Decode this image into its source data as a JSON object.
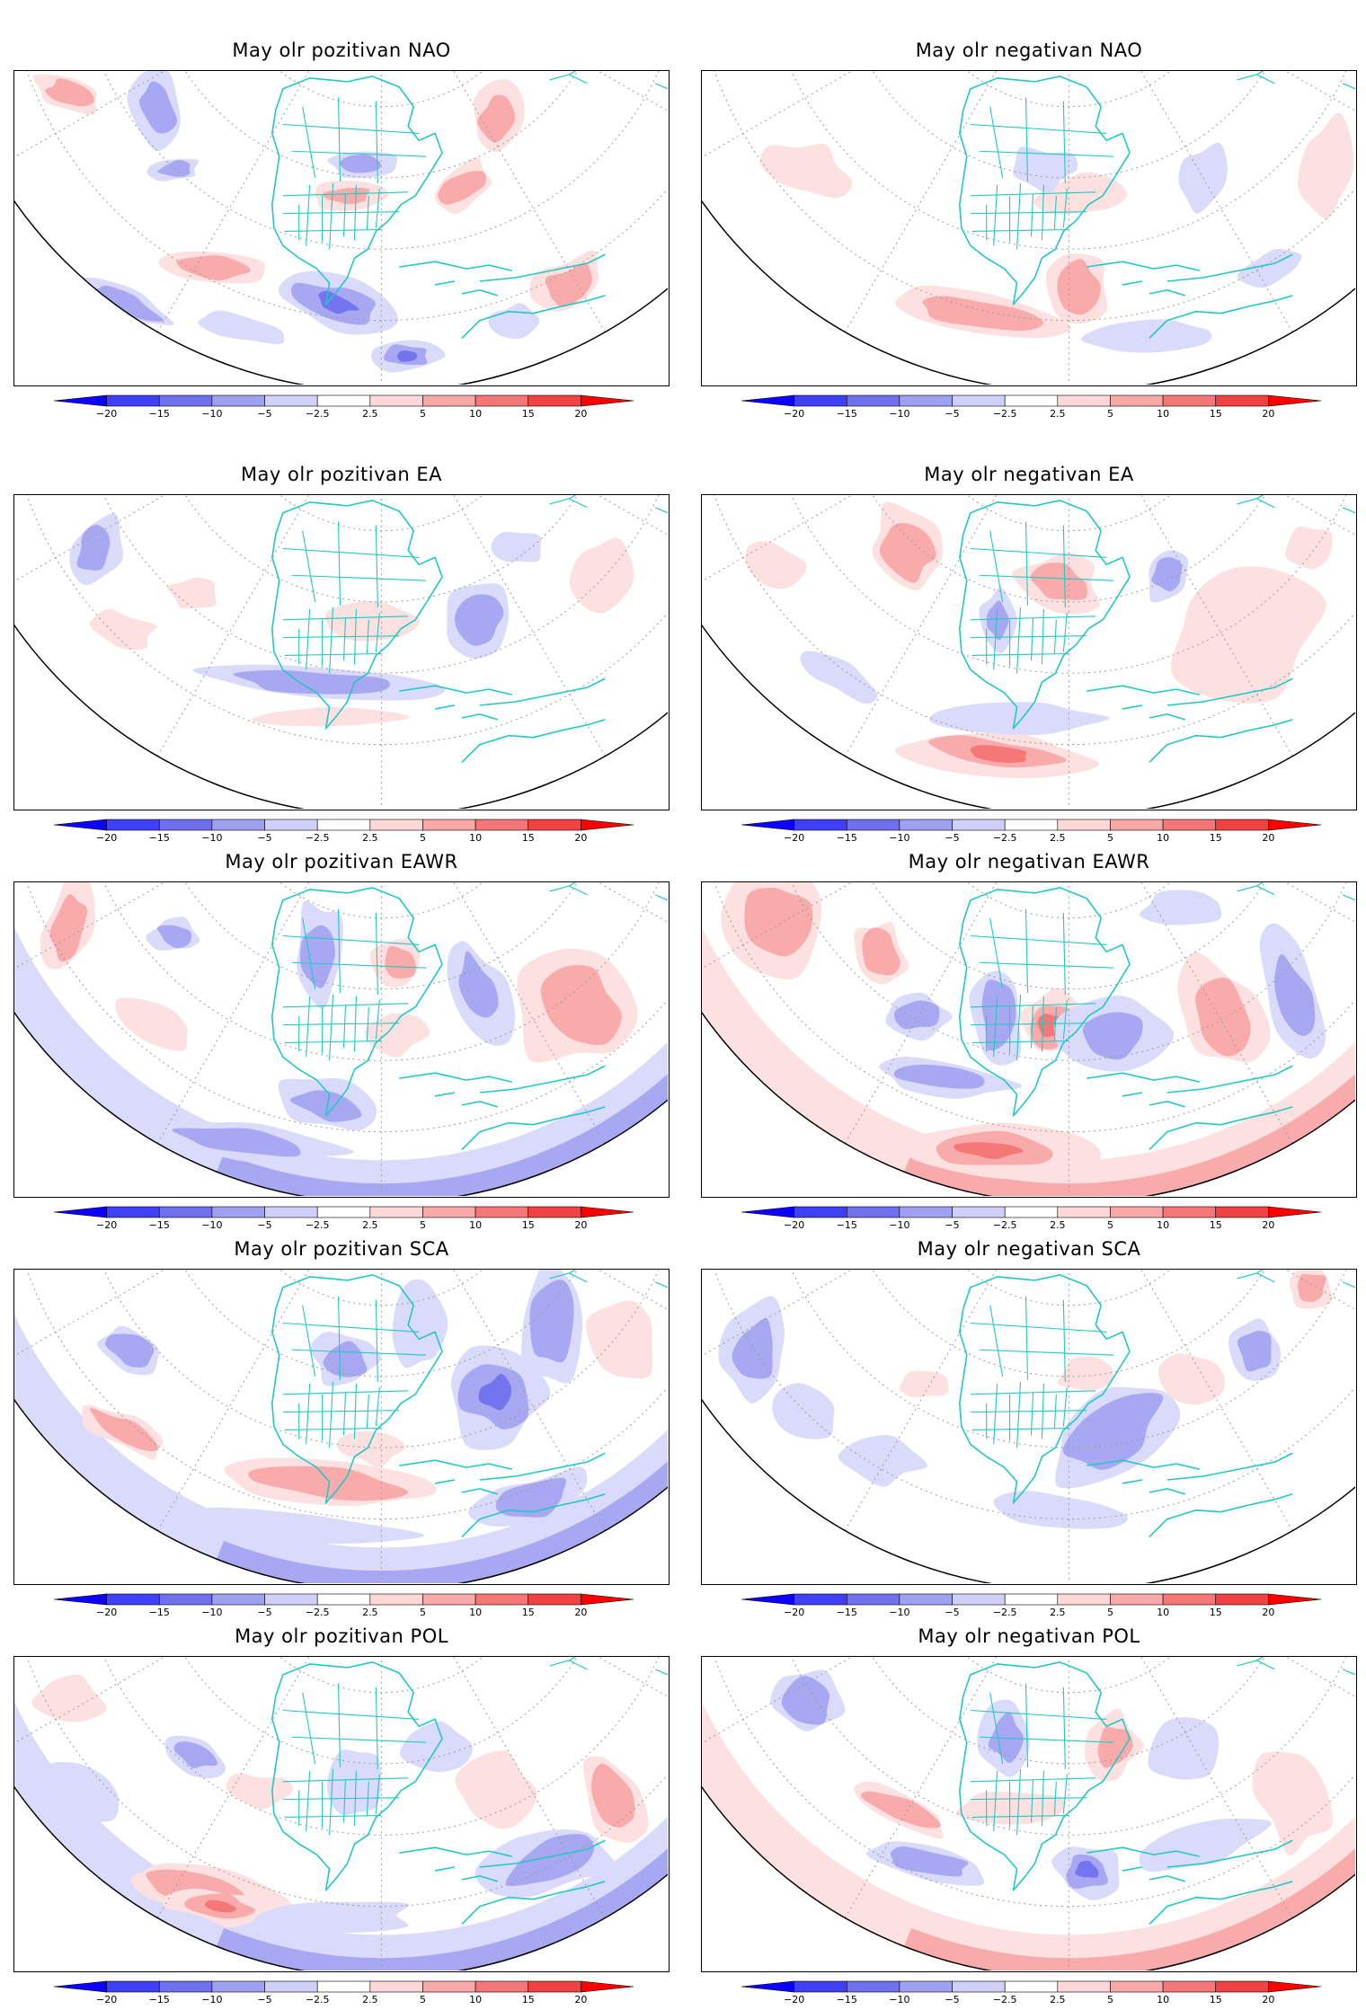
{
  "panels": [
    {
      "title": "May olr pozitivan NAO",
      "variant": 0
    },
    {
      "title": "May olr negativan NAO",
      "variant": 1
    },
    {
      "title": "May olr pozitivan EA",
      "variant": 2
    },
    {
      "title": "May olr negativan EA",
      "variant": 3
    },
    {
      "title": "May olr pozitivan EAWR",
      "variant": 4
    },
    {
      "title": "May olr negativan EAWR",
      "variant": 5
    },
    {
      "title": "May olr pozitivan SCA",
      "variant": 6
    },
    {
      "title": "May olr negativan SCA",
      "variant": 7
    },
    {
      "title": "May olr pozitivan POL",
      "variant": 8
    },
    {
      "title": "May olr negativan POL",
      "variant": 9
    }
  ],
  "colorbar": {
    "tick_labels": [
      "−20",
      "−15",
      "−10",
      "−5",
      "−2.5",
      "2.5",
      "5",
      "10",
      "15",
      "20"
    ],
    "colors": [
      "#0d00ff",
      "#3f3ff5",
      "#7070ef",
      "#a0a0f3",
      "#cfcff9",
      "#ffffff",
      "#fdd8d8",
      "#f9a8a8",
      "#f47676",
      "#f04242",
      "#ff0000"
    ]
  },
  "style": {
    "coast_color": "#1fc9c4",
    "grid_color": "#9a9a9a"
  }
}
